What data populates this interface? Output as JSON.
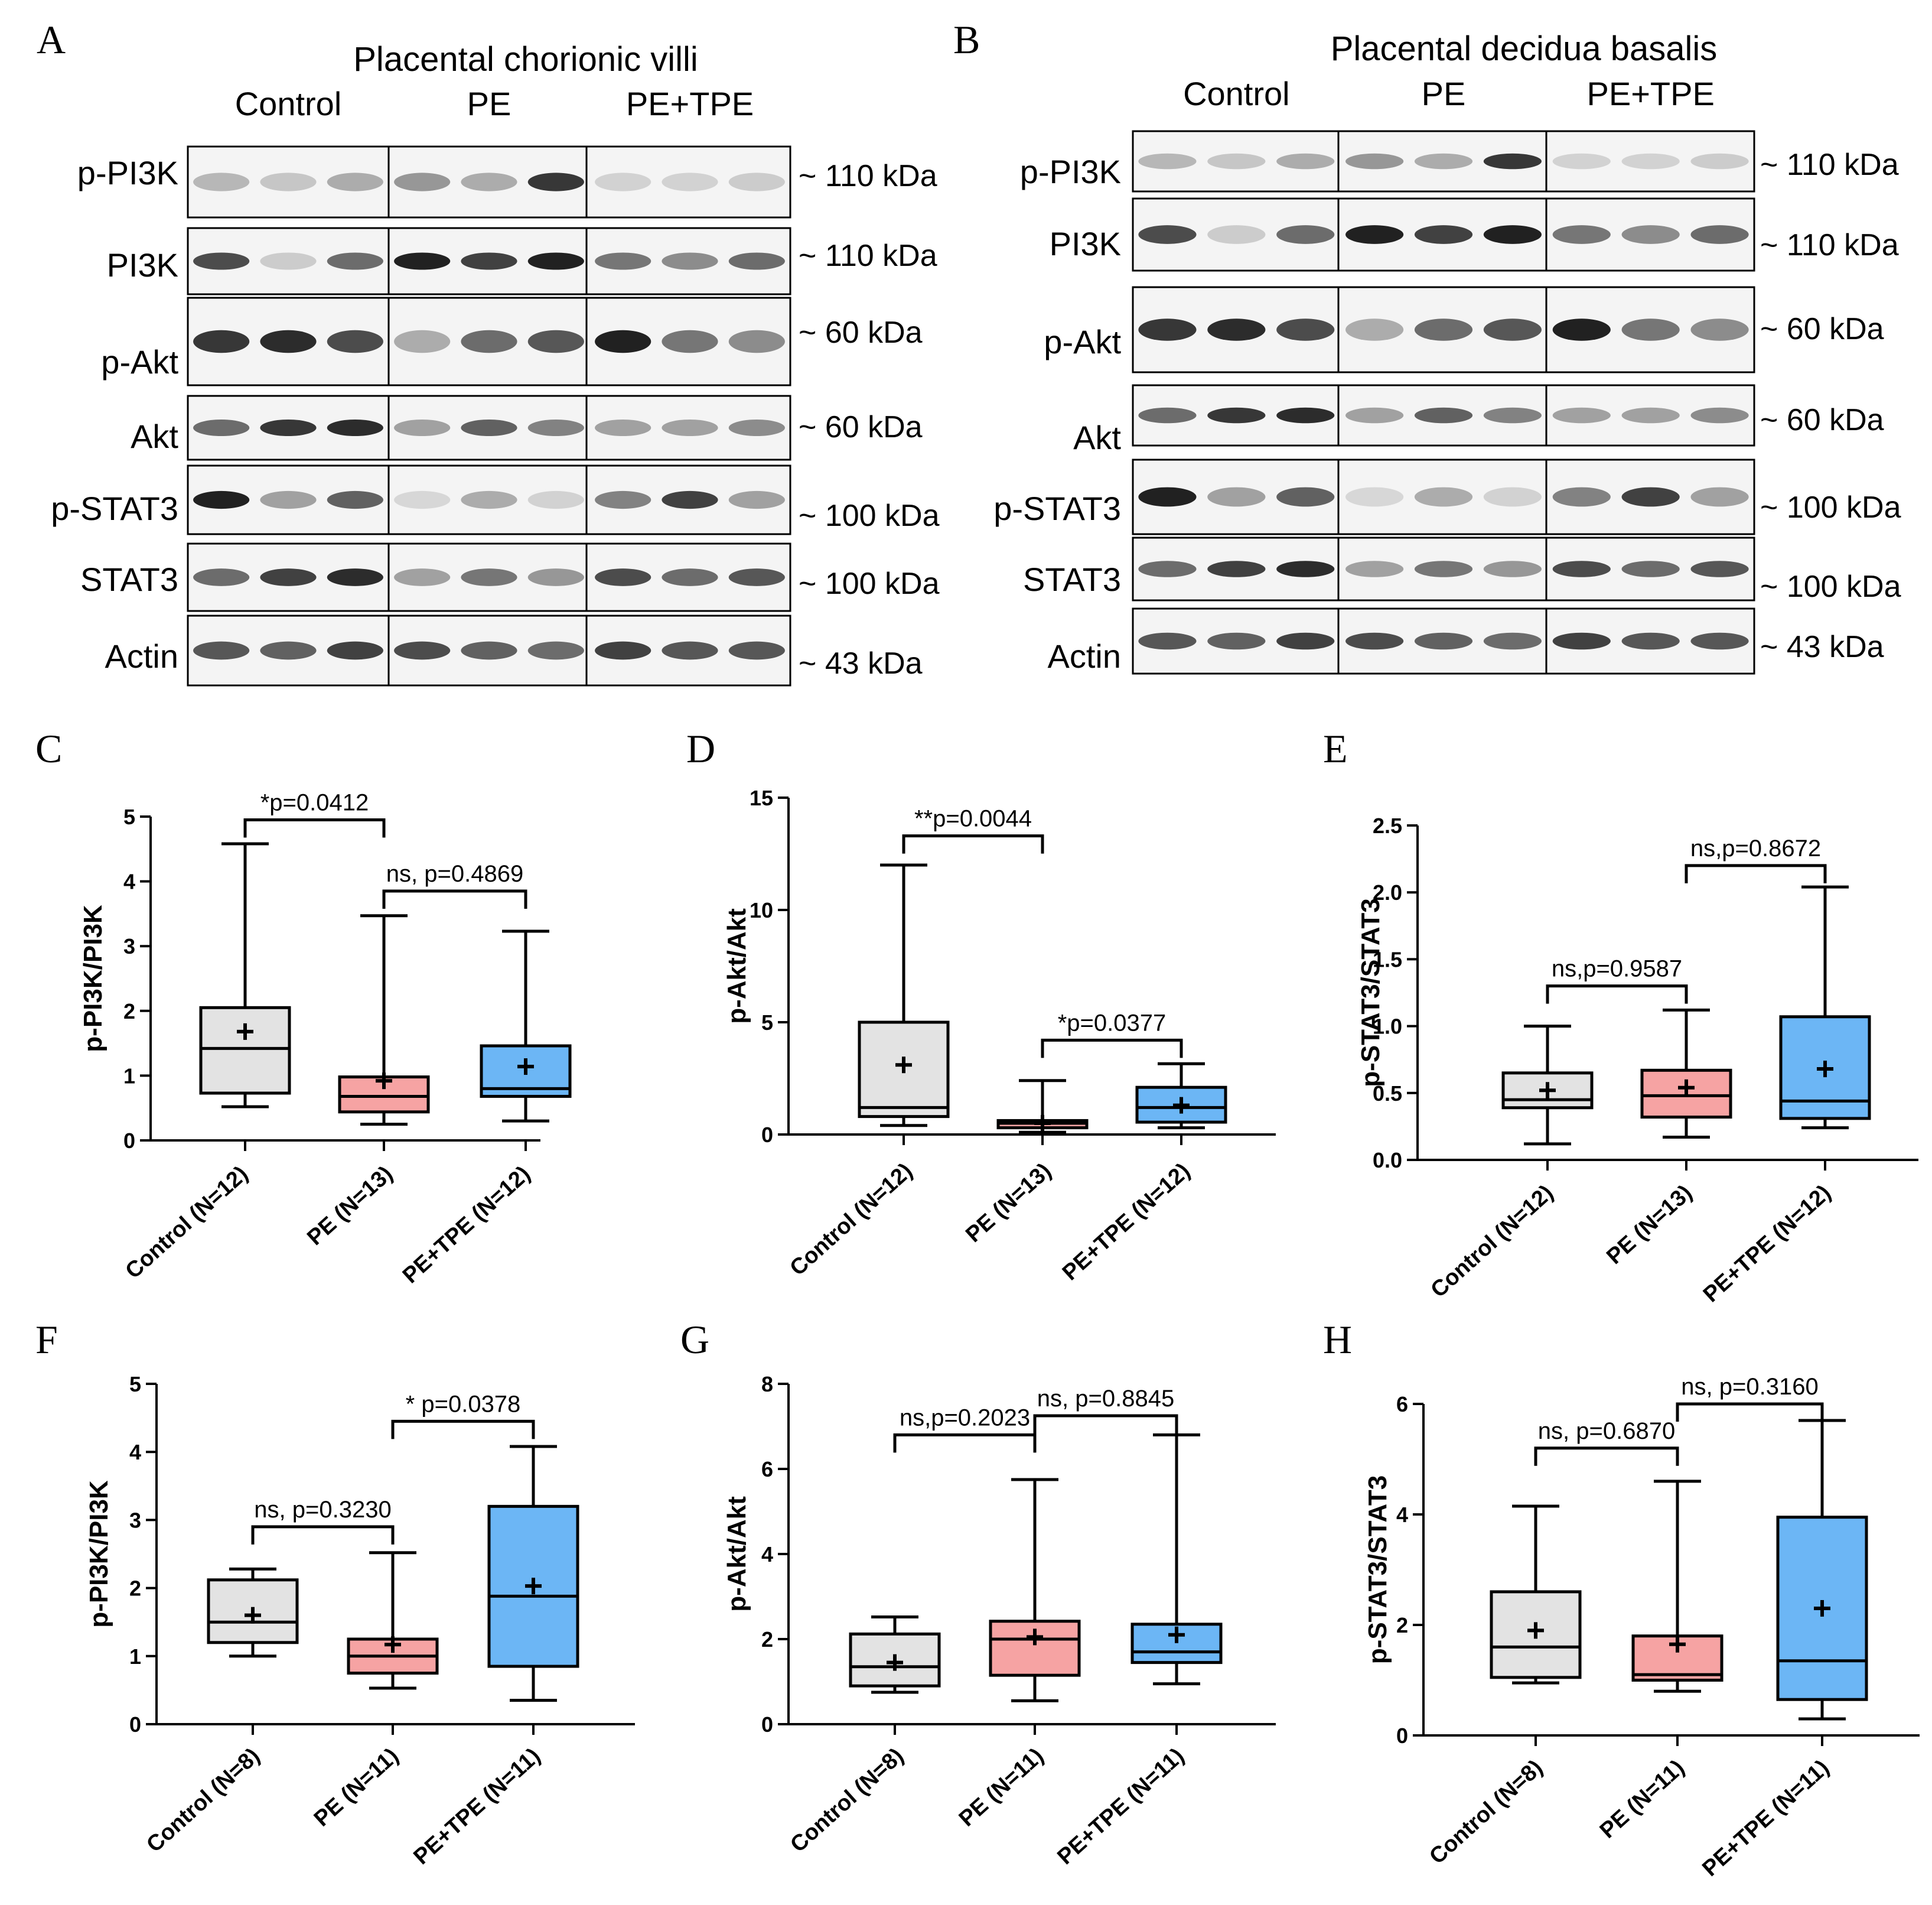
{
  "blots": [
    {
      "letter": "A",
      "title": "Placental chorionic villi",
      "groups": [
        "Control",
        "PE",
        "PE+TPE"
      ],
      "rows": [
        {
          "label": "p-PI3K",
          "kda": "~ 110 kDa"
        },
        {
          "label": "PI3K",
          "kda": "~ 110 kDa"
        },
        {
          "label": "p-Akt",
          "kda": "~ 60 kDa"
        },
        {
          "label": "Akt",
          "kda": "~ 60 kDa"
        },
        {
          "label": "p-STAT3",
          "kda": "~ 100 kDa"
        },
        {
          "label": "STAT3",
          "kda": "~ 100 kDa"
        },
        {
          "label": "Actin",
          "kda": "~ 43 kDa"
        }
      ]
    },
    {
      "letter": "B",
      "title": "Placental decidua basalis",
      "groups": [
        "Control",
        "PE",
        "PE+TPE"
      ],
      "rows": [
        {
          "label": "p-PI3K",
          "kda": "~ 110 kDa"
        },
        {
          "label": "PI3K",
          "kda": "~ 110 kDa"
        },
        {
          "label": "p-Akt",
          "kda": "~ 60 kDa"
        },
        {
          "label": "Akt",
          "kda": "~ 60 kDa"
        },
        {
          "label": "p-STAT3",
          "kda": "~ 100 kDa"
        },
        {
          "label": "STAT3",
          "kda": "~ 100 kDa"
        },
        {
          "label": "Actin",
          "kda": "~ 43 kDa"
        }
      ]
    }
  ],
  "colors": {
    "control": "#e3e3e3",
    "pe": "#f6a3a3",
    "tpe": "#6cb6f5"
  },
  "chart_data": [
    {
      "letter": "C",
      "type": "box",
      "ylabel": "p-PI3K/PI3K",
      "ylim": [
        0,
        5
      ],
      "yticks": [
        "0",
        "1",
        "2",
        "3",
        "4",
        "5"
      ],
      "categories": [
        "Control (N=12)",
        "PE (N=13)",
        "PE+TPE (N=12)"
      ],
      "boxes": [
        {
          "min": 0.52,
          "q1": 0.73,
          "median": 1.42,
          "q3": 2.05,
          "max": 4.58,
          "mean": 1.68
        },
        {
          "min": 0.25,
          "q1": 0.44,
          "median": 0.68,
          "q3": 0.98,
          "max": 3.47,
          "mean": 0.92
        },
        {
          "min": 0.3,
          "q1": 0.68,
          "median": 0.8,
          "q3": 1.46,
          "max": 3.23,
          "mean": 1.14
        }
      ],
      "comparisons": [
        {
          "from": 0,
          "to": 1,
          "y": 4.95,
          "label": "*p=0.0412"
        },
        {
          "from": 1,
          "to": 2,
          "y": 3.85,
          "label": "ns, p=0.4869"
        }
      ]
    },
    {
      "letter": "D",
      "type": "box",
      "ylabel": "p-Akt/Akt",
      "ylim": [
        0,
        15
      ],
      "yticks": [
        "0",
        "5",
        "10",
        "15"
      ],
      "categories": [
        "Control (N=12)",
        "PE (N=13)",
        "PE+TPE (N=12)"
      ],
      "boxes": [
        {
          "min": 0.4,
          "q1": 0.8,
          "median": 1.2,
          "q3": 5.0,
          "max": 12.0,
          "mean": 3.1
        },
        {
          "min": 0.1,
          "q1": 0.3,
          "median": 0.5,
          "q3": 0.62,
          "max": 2.4,
          "mean": 0.5
        },
        {
          "min": 0.3,
          "q1": 0.55,
          "median": 1.2,
          "q3": 2.1,
          "max": 3.15,
          "mean": 1.3
        }
      ],
      "comparisons": [
        {
          "from": 0,
          "to": 1,
          "y": 13.3,
          "label": "**p=0.0044"
        },
        {
          "from": 1,
          "to": 2,
          "y": 4.2,
          "label": "*p=0.0377"
        }
      ]
    },
    {
      "letter": "E",
      "type": "box",
      "ylabel": "p-STAT3/STAT3",
      "ylim": [
        0,
        2.5
      ],
      "yticks": [
        "0.0",
        "0.5",
        "1.0",
        "1.5",
        "2.0",
        "2.5"
      ],
      "categories": [
        "Control (N=12)",
        "PE (N=13)",
        "PE+TPE (N=12)"
      ],
      "boxes": [
        {
          "min": 0.12,
          "q1": 0.39,
          "median": 0.45,
          "q3": 0.65,
          "max": 1.0,
          "mean": 0.52
        },
        {
          "min": 0.17,
          "q1": 0.32,
          "median": 0.48,
          "q3": 0.67,
          "max": 1.12,
          "mean": 0.54
        },
        {
          "min": 0.24,
          "q1": 0.31,
          "median": 0.44,
          "q3": 1.07,
          "max": 2.04,
          "mean": 0.68
        }
      ],
      "comparisons": [
        {
          "from": 0,
          "to": 1,
          "y": 1.3,
          "label": "ns,p=0.9587"
        },
        {
          "from": 1,
          "to": 2,
          "y": 2.2,
          "label": "ns,p=0.8672"
        }
      ]
    },
    {
      "letter": "F",
      "type": "box",
      "ylabel": "p-PI3K/PI3K",
      "ylim": [
        0,
        5
      ],
      "yticks": [
        "0",
        "1",
        "2",
        "3",
        "4",
        "5"
      ],
      "categories": [
        "Control (N=8)",
        "PE (N=11)",
        "PE+TPE (N=11)"
      ],
      "boxes": [
        {
          "min": 1.0,
          "q1": 1.2,
          "median": 1.5,
          "q3": 2.12,
          "max": 2.28,
          "mean": 1.6
        },
        {
          "min": 0.53,
          "q1": 0.75,
          "median": 1.0,
          "q3": 1.25,
          "max": 2.52,
          "mean": 1.17
        },
        {
          "min": 0.35,
          "q1": 0.85,
          "median": 1.88,
          "q3": 3.2,
          "max": 4.08,
          "mean": 2.03
        }
      ],
      "comparisons": [
        {
          "from": 0,
          "to": 1,
          "y": 2.9,
          "label": "ns, p=0.3230"
        },
        {
          "from": 1,
          "to": 2,
          "y": 4.45,
          "label": "* p=0.0378"
        }
      ]
    },
    {
      "letter": "G",
      "type": "box",
      "ylabel": "p-Akt/Akt",
      "ylim": [
        0,
        8
      ],
      "yticks": [
        "0",
        "2",
        "4",
        "6",
        "8"
      ],
      "categories": [
        "Control (N=8)",
        "PE (N=11)",
        "PE+TPE (N=11)"
      ],
      "boxes": [
        {
          "min": 0.75,
          "q1": 0.9,
          "median": 1.35,
          "q3": 2.12,
          "max": 2.52,
          "mean": 1.45
        },
        {
          "min": 0.55,
          "q1": 1.15,
          "median": 2.0,
          "q3": 2.42,
          "max": 5.75,
          "mean": 2.05
        },
        {
          "min": 0.95,
          "q1": 1.45,
          "median": 1.7,
          "q3": 2.35,
          "max": 6.8,
          "mean": 2.1
        }
      ],
      "comparisons": [
        {
          "from": 0,
          "to": 1,
          "y": 6.8,
          "label": "ns,p=0.2023"
        },
        {
          "from": 1,
          "to": 2,
          "y": 7.25,
          "label": "ns, p=0.8845"
        }
      ]
    },
    {
      "letter": "H",
      "type": "box",
      "ylabel": "p-STAT3/STAT3",
      "ylim": [
        0,
        6
      ],
      "yticks": [
        "0",
        "2",
        "4",
        "6"
      ],
      "categories": [
        "Control (N=8)",
        "PE (N=11)",
        "PE+TPE (N=11)"
      ],
      "boxes": [
        {
          "min": 0.95,
          "q1": 1.05,
          "median": 1.6,
          "q3": 2.6,
          "max": 4.15,
          "mean": 1.9
        },
        {
          "min": 0.8,
          "q1": 1.0,
          "median": 1.1,
          "q3": 1.8,
          "max": 4.6,
          "mean": 1.65
        },
        {
          "min": 0.3,
          "q1": 0.65,
          "median": 1.35,
          "q3": 3.95,
          "max": 5.7,
          "mean": 2.3
        }
      ],
      "comparisons": [
        {
          "from": 0,
          "to": 1,
          "y": 5.2,
          "label": "ns, p=0.6870"
        },
        {
          "from": 1,
          "to": 2,
          "y": 6.0,
          "label": "ns, p=0.3160"
        }
      ]
    }
  ]
}
